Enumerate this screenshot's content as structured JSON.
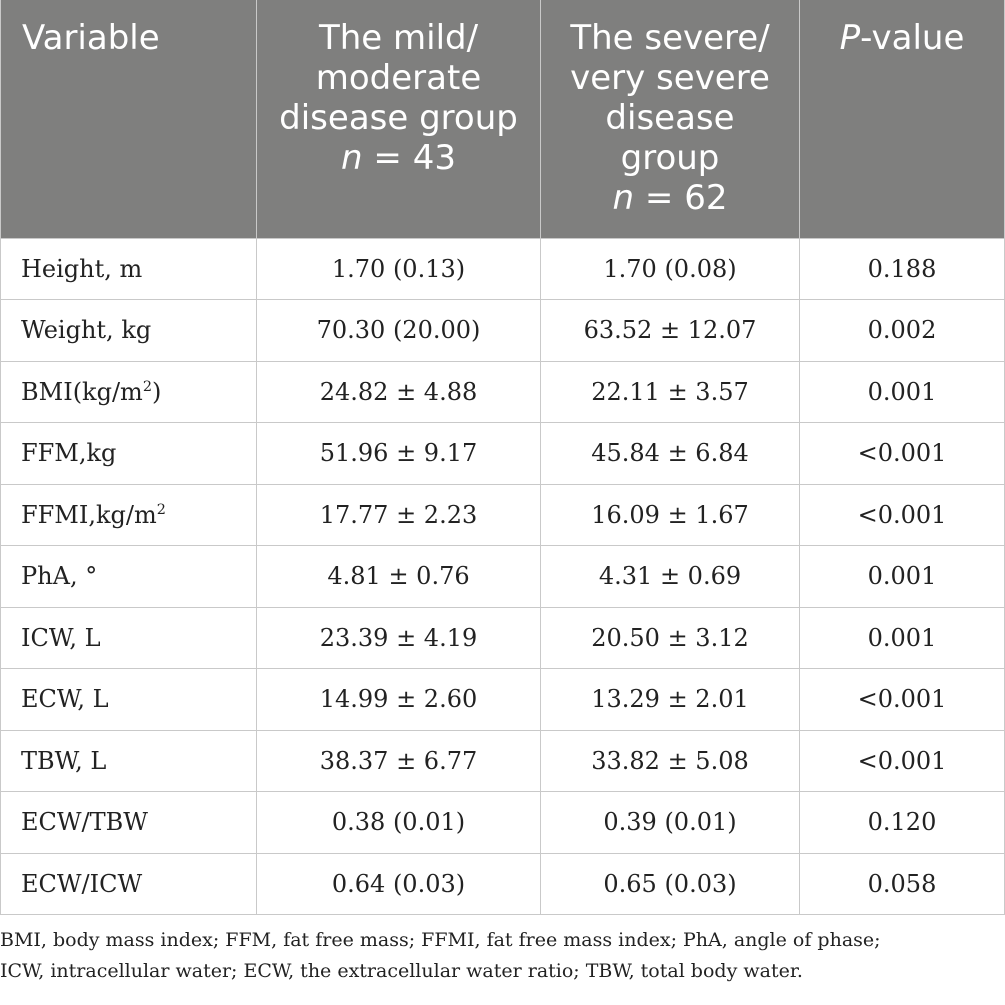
{
  "header": {
    "variable": "Variable",
    "mild_line1": "The mild/",
    "mild_line2": "moderate",
    "mild_line3": "disease group",
    "mild_n": "n",
    "mild_n_rest": " = 43",
    "severe_line1": "The severe/",
    "severe_line2": "very severe",
    "severe_line3": "disease",
    "severe_line4": "group",
    "severe_n": "n",
    "severe_n_rest": " = 62",
    "p_italic": "P",
    "p_rest": "-value"
  },
  "rows": [
    {
      "variable": "Height, m",
      "sup": "",
      "variable_after": "",
      "mild": "1.70 (0.13)",
      "severe": "1.70 (0.08)",
      "p": "0.188"
    },
    {
      "variable": "Weight, kg",
      "sup": "",
      "variable_after": "",
      "mild": "70.30 (20.00)",
      "severe": "63.52 ± 12.07",
      "p": "0.002"
    },
    {
      "variable": "BMI(kg/m",
      "sup": "2",
      "variable_after": ")",
      "mild": "24.82 ± 4.88",
      "severe": "22.11 ± 3.57",
      "p": "0.001"
    },
    {
      "variable": "FFM,kg",
      "sup": "",
      "variable_after": "",
      "mild": "51.96 ± 9.17",
      "severe": "45.84 ± 6.84",
      "p": "<0.001"
    },
    {
      "variable": "FFMI,kg/m",
      "sup": "2",
      "variable_after": "",
      "mild": "17.77 ± 2.23",
      "severe": "16.09 ± 1.67",
      "p": "<0.001"
    },
    {
      "variable": "PhA, °",
      "sup": "",
      "variable_after": "",
      "mild": "4.81 ± 0.76",
      "severe": "4.31 ± 0.69",
      "p": "0.001"
    },
    {
      "variable": "ICW, L",
      "sup": "",
      "variable_after": "",
      "mild": "23.39 ± 4.19",
      "severe": "20.50 ± 3.12",
      "p": "0.001"
    },
    {
      "variable": "ECW, L",
      "sup": "",
      "variable_after": "",
      "mild": "14.99 ± 2.60",
      "severe": "13.29 ± 2.01",
      "p": "<0.001"
    },
    {
      "variable": "TBW, L",
      "sup": "",
      "variable_after": "",
      "mild": "38.37 ± 6.77",
      "severe": "33.82 ± 5.08",
      "p": "<0.001"
    },
    {
      "variable": "ECW/TBW",
      "sup": "",
      "variable_after": "",
      "mild": "0.38 (0.01)",
      "severe": "0.39 (0.01)",
      "p": "0.120"
    },
    {
      "variable": "ECW/ICW",
      "sup": "",
      "variable_after": "",
      "mild": "0.64 (0.03)",
      "severe": "0.65 (0.03)",
      "p": "0.058"
    }
  ],
  "footnote_line1": "BMI, body mass index; FFM, fat free mass; FFMI, fat free mass index; PhA, angle of phase;",
  "footnote_line2": "ICW, intracellular water; ECW, the extracellular water ratio; TBW, total body water."
}
